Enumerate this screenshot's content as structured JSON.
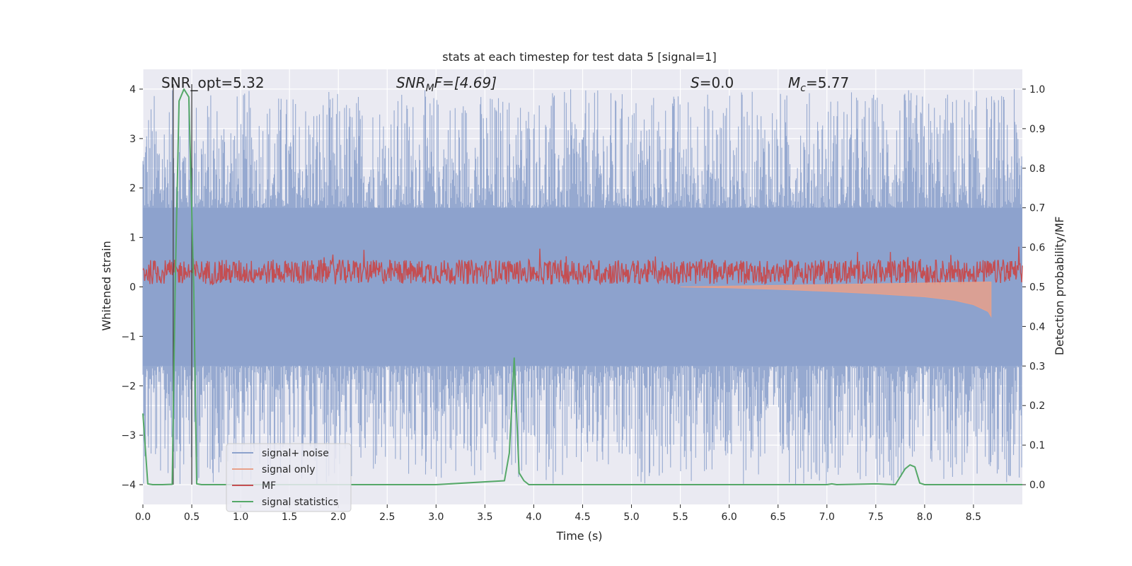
{
  "chart_data": {
    "type": "line",
    "title": "stats at each timestep for test data 5 [signal=1]",
    "xlabel": "Time (s)",
    "ylabel": "Whitened strain",
    "y2label": "Detection probability/MF",
    "xlim": [
      0.0,
      9.0
    ],
    "ylim": [
      -4.4,
      4.4
    ],
    "y2lim": [
      -0.05,
      1.05
    ],
    "xticks": [
      "0.0",
      "0.5",
      "1.0",
      "1.5",
      "2.0",
      "2.5",
      "3.0",
      "3.5",
      "4.0",
      "4.5",
      "5.0",
      "5.5",
      "6.0",
      "6.5",
      "7.0",
      "7.5",
      "8.0",
      "8.5"
    ],
    "yticks": [
      "4",
      "3",
      "2",
      "1",
      "0",
      "−1",
      "−2",
      "−3",
      "−4"
    ],
    "y2ticks": [
      "1.0",
      "0.9",
      "0.8",
      "0.7",
      "0.6",
      "0.5",
      "0.4",
      "0.3",
      "0.2",
      "0.1",
      "0.0"
    ],
    "grid": true,
    "legend_position": "lower-left",
    "annotations": {
      "snr_opt": "SNR_opt=5.32",
      "snr_mf_base": "SNR",
      "snr_mf_sub": "M",
      "snr_mf_rest": "F=[4.69]",
      "s_var": "S",
      "s_rest": "=0.0",
      "mc_var": "M",
      "mc_sub": "c",
      "mc_rest": "=5.77"
    },
    "vertical_lines_x": [
      0.31,
      0.5
    ],
    "series": [
      {
        "name": "signal+ noise",
        "color": "#8da2cc",
        "description_values": {
          "band_min": -4.0,
          "band_max": 4.0,
          "core_min": -1.6,
          "core_max": 1.6
        }
      },
      {
        "name": "signal only",
        "color": "#e8a08a",
        "values_x": [
          5.5,
          6.0,
          6.5,
          7.0,
          7.5,
          8.0,
          8.3,
          8.5,
          8.65,
          8.68
        ],
        "values_y": [
          0.0,
          -0.02,
          -0.05,
          -0.09,
          -0.14,
          -0.2,
          -0.27,
          -0.36,
          -0.5,
          -0.6
        ]
      },
      {
        "name": "MF",
        "color": "#c44e52",
        "description_values": {
          "center": 0.3,
          "spread": 0.25
        }
      },
      {
        "name": "signal statistics",
        "color": "#55a868",
        "axis": "right",
        "x": [
          0.0,
          0.05,
          0.1,
          0.2,
          0.3,
          0.33,
          0.37,
          0.42,
          0.47,
          0.52,
          0.55,
          0.6,
          1.0,
          2.0,
          3.0,
          3.7,
          3.75,
          3.8,
          3.85,
          3.9,
          3.95,
          4.0,
          5.0,
          6.0,
          7.0,
          7.05,
          7.1,
          7.5,
          7.7,
          7.8,
          7.85,
          7.9,
          7.95,
          8.0,
          8.5,
          9.0
        ],
        "y": [
          0.18,
          0.002,
          0.0,
          0.0,
          0.001,
          0.5,
          0.97,
          1.0,
          0.98,
          0.5,
          0.002,
          0.0,
          0.0,
          0.0,
          0.0,
          0.01,
          0.08,
          0.32,
          0.03,
          0.01,
          0.0,
          0.0,
          0.0,
          0.0,
          0.0,
          0.002,
          0.0,
          0.002,
          0.0,
          0.04,
          0.05,
          0.045,
          0.004,
          0.0,
          0.0,
          0.0
        ]
      }
    ]
  }
}
